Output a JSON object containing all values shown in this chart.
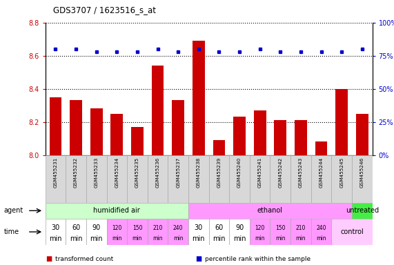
{
  "title": "GDS3707 / 1623516_s_at",
  "samples": [
    "GSM455231",
    "GSM455232",
    "GSM455233",
    "GSM455234",
    "GSM455235",
    "GSM455236",
    "GSM455237",
    "GSM455238",
    "GSM455239",
    "GSM455240",
    "GSM455241",
    "GSM455242",
    "GSM455243",
    "GSM455244",
    "GSM455245",
    "GSM455246"
  ],
  "bar_values": [
    8.35,
    8.33,
    8.28,
    8.25,
    8.17,
    8.54,
    8.33,
    8.69,
    8.09,
    8.23,
    8.27,
    8.21,
    8.21,
    8.08,
    8.4,
    8.25
  ],
  "dot_values": [
    80,
    80,
    78,
    78,
    78,
    80,
    78,
    80,
    78,
    78,
    80,
    78,
    78,
    78,
    78,
    80
  ],
  "ylim_left": [
    8.0,
    8.8
  ],
  "ylim_right": [
    0,
    100
  ],
  "yticks_left": [
    8.0,
    8.2,
    8.4,
    8.6,
    8.8
  ],
  "yticks_right": [
    0,
    25,
    50,
    75,
    100
  ],
  "bar_color": "#cc0000",
  "dot_color": "#0000cc",
  "agent_groups": [
    {
      "label": "humidified air",
      "start": 0,
      "end": 7,
      "color": "#ccffcc"
    },
    {
      "label": "ethanol",
      "start": 7,
      "end": 15,
      "color": "#ff99ff"
    },
    {
      "label": "untreated",
      "start": 15,
      "end": 16,
      "color": "#44ee44"
    }
  ],
  "time_labels": [
    "30\nmin",
    "60\nmin",
    "90\nmin",
    "120\nmin",
    "150\nmin",
    "210\nmin",
    "240\nmin",
    "30\nmin",
    "60\nmin",
    "90\nmin",
    "120\nmin",
    "150\nmin",
    "210\nmin",
    "240\nmin"
  ],
  "time_colors_normal": "#ffffff",
  "time_colors_pink": "#ff99ff",
  "time_pink_indices": [
    3,
    4,
    5,
    6,
    10,
    11,
    12,
    13
  ],
  "control_label": "control",
  "control_color": "#ffccff",
  "legend_items": [
    {
      "label": "transformed count",
      "color": "#cc0000"
    },
    {
      "label": "percentile rank within the sample",
      "color": "#0000cc"
    }
  ],
  "background_color": "#ffffff",
  "tick_label_color_left": "#cc0000",
  "tick_label_color_right": "#0000cc",
  "sample_bg_color": "#d8d8d8"
}
